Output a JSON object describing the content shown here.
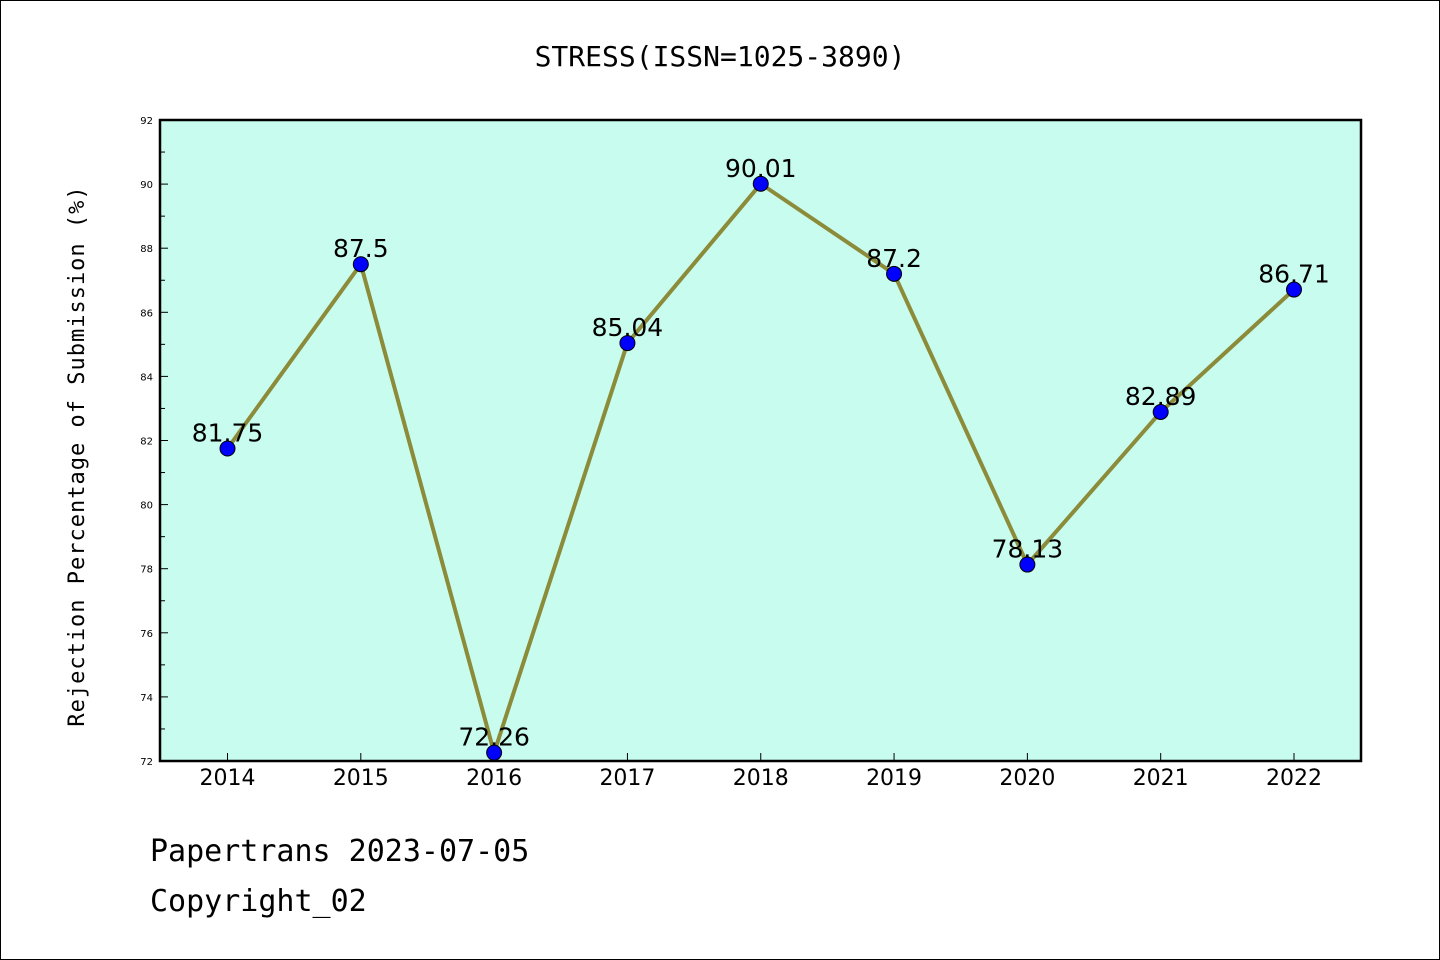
{
  "chart_data": {
    "type": "line",
    "title": "STRESS(ISSN=1025-3890)",
    "xlabel": "",
    "ylabel": "Rejection Percentage of Submission (%)",
    "categories": [
      "2014",
      "2015",
      "2016",
      "2017",
      "2018",
      "2019",
      "2020",
      "2021",
      "2022"
    ],
    "series": [
      {
        "values": [
          81.75,
          87.5,
          72.26,
          85.04,
          90.01,
          87.2,
          78.13,
          82.89,
          86.71
        ],
        "data_labels": [
          "81.75",
          "87.5",
          "72.26",
          "85.04",
          "90.01",
          "87.2",
          "78.13",
          "82.89",
          "86.71"
        ],
        "line_color": "#8b8b3a",
        "marker_color": "#0000ff"
      }
    ],
    "ylim": [
      72,
      92
    ],
    "yticks": [
      72,
      74,
      76,
      78,
      80,
      82,
      84,
      86,
      88,
      90,
      92
    ],
    "plot_background": "#c8fcee",
    "grid": false,
    "legend": "none"
  },
  "footer": {
    "line1": "Papertrans 2023-07-05",
    "line2": "Copyright_02"
  }
}
